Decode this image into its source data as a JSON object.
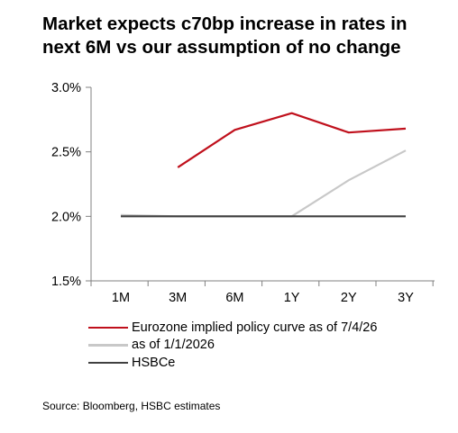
{
  "title_lines": [
    "Market expects c70bp increase in rates in",
    "next 6M vs our assumption of no change"
  ],
  "source": "Source: Bloomberg, HSBC estimates",
  "chart_data": {
    "type": "line",
    "title": "Market expects c70bp increase in rates in next 6M vs our assumption of no change",
    "categories": [
      "1M",
      "3M",
      "6M",
      "1Y",
      "2Y",
      "3Y"
    ],
    "y_tick_labels": [
      "3.0%",
      "2.5%",
      "2.0%",
      "1.5%"
    ],
    "ylim": [
      1.5,
      3.0
    ],
    "y_ticks": [
      3.0,
      2.5,
      2.0,
      1.5
    ],
    "y_unit": "%",
    "grid": false,
    "legend_position": "bottom",
    "series": [
      {
        "name": "Eurozone implied policy curve as of 7/4/26",
        "color": "#c0101c",
        "values": [
          null,
          2.38,
          2.67,
          2.8,
          2.65,
          2.68
        ]
      },
      {
        "name": "as of 1/1/2026",
        "color": "#c8c8c8",
        "values": [
          2.01,
          2.0,
          2.0,
          2.0,
          2.28,
          2.51
        ]
      },
      {
        "name": "HSBCe",
        "color": "#404040",
        "values": [
          2.0,
          2.0,
          2.0,
          2.0,
          2.0,
          2.0
        ]
      }
    ]
  }
}
